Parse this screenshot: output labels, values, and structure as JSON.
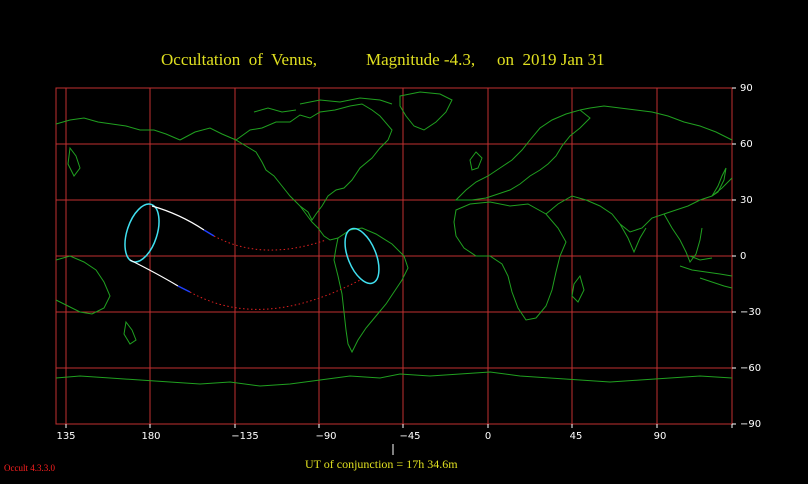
{
  "title": {
    "object": "Occultation  of  Venus,",
    "magnitude": "Magnitude -4.3,",
    "date": "on  2019 Jan 31"
  },
  "axes": {
    "x_ticks": [
      "135",
      "180",
      "−135",
      "−90",
      "−45",
      "0",
      "45",
      "90"
    ],
    "y_ticks": [
      "90",
      "60",
      "30",
      "0",
      "−30",
      "−60",
      "−90"
    ]
  },
  "conjunction": {
    "label": "UT of conjunction = 17h 34.6m"
  },
  "software_version": "Occult 4.3.3.0",
  "colors": {
    "background": "#000000",
    "grid": "#c03030",
    "coastline": "#20a020",
    "title": "#e0e020",
    "limit_line": "#ffffff",
    "daylight_ellipse": "#40e0f0",
    "dotted_path": "#e02020",
    "twilight_segment": "#2040ff"
  }
}
